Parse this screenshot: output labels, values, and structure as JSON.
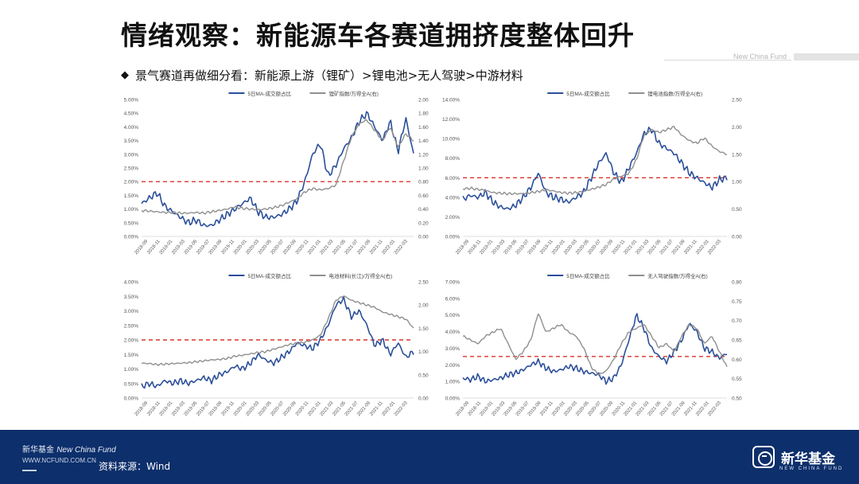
{
  "slide": {
    "title": "情绪观察：新能源车各赛道拥挤度整体回升",
    "brand_top": "New China Fund",
    "subtitle": "景气赛道再做细分看：新能源上游（锂矿）>锂电池>无人驾驶>中游材料",
    "bullet_icon": "diamond-bullet-icon"
  },
  "footer": {
    "brand_cn": "新华基金",
    "brand_en": "New China Fund",
    "url": "WWW.NCFUND.COM.CN",
    "source": "资料来源：Wind",
    "logo_text": "新华基金",
    "logo_sub": "NEW CHINA FUND",
    "logo_icon": "new-china-fund-logo-icon"
  },
  "colors": {
    "left_series": "#2b4f9a",
    "right_series": "#8f8f8f",
    "threshold": "#d9342b",
    "footer_bg": "#0d2f6b"
  },
  "chart_data": [
    {
      "type": "line",
      "x_ticks": [
        "2018-09",
        "2018-11",
        "2019-01",
        "2019-03",
        "2019-05",
        "2019-07",
        "2019-09",
        "2019-11",
        "2020-01",
        "2020-03",
        "2020-05",
        "2020-07",
        "2020-09",
        "2020-11",
        "2021-01",
        "2021-03",
        "2021-05",
        "2021-07",
        "2021-09",
        "2021-11",
        "2022-01",
        "2022-03"
      ],
      "y_left": {
        "min": 0,
        "max": 0.05,
        "ticks": [
          "0.00%",
          "0.50%",
          "1.00%",
          "1.50%",
          "2.00%",
          "2.50%",
          "3.00%",
          "3.50%",
          "4.00%",
          "4.50%",
          "5.00%"
        ]
      },
      "y_right": {
        "min": 0,
        "max": 2.0,
        "ticks": [
          "0.00",
          "0.20",
          "0.40",
          "0.60",
          "0.80",
          "1.00",
          "1.20",
          "1.40",
          "1.60",
          "1.80",
          "2.00"
        ]
      },
      "threshold": 0.02,
      "series": [
        {
          "name": "5日MA-成交额占比",
          "axis": "left",
          "values": [
            0.012,
            0.014,
            0.016,
            0.011,
            0.009,
            0.007,
            0.005,
            0.006,
            0.004,
            0.004,
            0.006,
            0.008,
            0.01,
            0.012,
            0.014,
            0.009,
            0.007,
            0.007,
            0.008,
            0.01,
            0.013,
            0.02,
            0.03,
            0.034,
            0.022,
            0.026,
            0.032,
            0.036,
            0.042,
            0.045,
            0.04,
            0.035,
            0.042,
            0.031,
            0.043,
            0.03
          ]
        },
        {
          "name": "锂矿指数/万得全A(右)",
          "axis": "right",
          "values": [
            0.38,
            0.37,
            0.36,
            0.35,
            0.35,
            0.34,
            0.34,
            0.35,
            0.34,
            0.36,
            0.38,
            0.4,
            0.43,
            0.41,
            0.4,
            0.39,
            0.4,
            0.42,
            0.45,
            0.5,
            0.55,
            0.65,
            0.7,
            0.68,
            0.7,
            0.75,
            1.1,
            1.45,
            1.65,
            1.7,
            1.55,
            1.4,
            1.6,
            1.3,
            1.5,
            1.4
          ]
        }
      ]
    },
    {
      "type": "line",
      "x_ticks": [
        "2018-09",
        "2018-11",
        "2019-01",
        "2019-03",
        "2019-05",
        "2019-07",
        "2019-09",
        "2019-11",
        "2020-01",
        "2020-03",
        "2020-05",
        "2020-07",
        "2020-09",
        "2020-11",
        "2021-01",
        "2021-03",
        "2021-05",
        "2021-07",
        "2021-09",
        "2021-11",
        "2022-01",
        "2022-03"
      ],
      "y_left": {
        "min": 0,
        "max": 0.14,
        "ticks": [
          "0.00%",
          "2.00%",
          "4.00%",
          "6.00%",
          "8.00%",
          "10.00%",
          "12.00%",
          "14.00%"
        ]
      },
      "y_right": {
        "min": 0,
        "max": 2.5,
        "ticks": [
          "0.00",
          "0.50",
          "1.00",
          "1.50",
          "2.00",
          "2.50"
        ]
      },
      "threshold": 0.06,
      "series": [
        {
          "name": "5日MA-成交额占比",
          "axis": "left",
          "values": [
            0.038,
            0.042,
            0.04,
            0.045,
            0.035,
            0.03,
            0.028,
            0.032,
            0.04,
            0.05,
            0.065,
            0.045,
            0.04,
            0.038,
            0.035,
            0.04,
            0.045,
            0.06,
            0.075,
            0.085,
            0.065,
            0.055,
            0.07,
            0.085,
            0.105,
            0.11,
            0.095,
            0.09,
            0.085,
            0.075,
            0.065,
            0.06,
            0.055,
            0.05,
            0.058,
            0.06
          ]
        },
        {
          "name": "锂电池指数/万得全A(右)",
          "axis": "right",
          "values": [
            0.87,
            0.88,
            0.86,
            0.84,
            0.8,
            0.79,
            0.78,
            0.78,
            0.78,
            0.8,
            0.82,
            0.85,
            0.83,
            0.8,
            0.79,
            0.8,
            0.82,
            0.86,
            0.9,
            0.95,
            1.05,
            1.1,
            1.15,
            1.4,
            1.85,
            1.95,
            1.9,
            1.95,
            2.0,
            1.85,
            1.75,
            1.7,
            1.8,
            1.65,
            1.55,
            1.5
          ]
        }
      ]
    },
    {
      "type": "line",
      "x_ticks": [
        "2018-09",
        "2018-11",
        "2019-01",
        "2019-03",
        "2019-05",
        "2019-07",
        "2019-09",
        "2019-11",
        "2020-01",
        "2020-03",
        "2020-05",
        "2020-07",
        "2020-09",
        "2020-11",
        "2021-01",
        "2021-03",
        "2021-05",
        "2021-07",
        "2021-09",
        "2021-11",
        "2022-01",
        "2022-03"
      ],
      "y_left": {
        "min": 0,
        "max": 0.04,
        "ticks": [
          "0.00%",
          "0.50%",
          "1.00%",
          "1.50%",
          "2.00%",
          "2.50%",
          "3.00%",
          "3.50%",
          "4.00%"
        ]
      },
      "y_right": {
        "min": 0,
        "max": 2.5,
        "ticks": [
          "0.00",
          "0.50",
          "1.00",
          "1.50",
          "2.00",
          "2.50"
        ]
      },
      "threshold": 0.02,
      "series": [
        {
          "name": "5日MA-成交额占比",
          "axis": "left",
          "values": [
            0.004,
            0.005,
            0.004,
            0.006,
            0.005,
            0.006,
            0.005,
            0.006,
            0.007,
            0.006,
            0.008,
            0.009,
            0.011,
            0.01,
            0.012,
            0.015,
            0.013,
            0.012,
            0.014,
            0.016,
            0.019,
            0.018,
            0.017,
            0.02,
            0.025,
            0.032,
            0.034,
            0.028,
            0.03,
            0.025,
            0.018,
            0.02,
            0.015,
            0.019,
            0.014,
            0.016
          ]
        },
        {
          "name": "电池材料(长江)/万得全A(右)",
          "axis": "right",
          "values": [
            0.75,
            0.74,
            0.72,
            0.73,
            0.74,
            0.75,
            0.76,
            0.78,
            0.8,
            0.82,
            0.83,
            0.85,
            0.9,
            0.92,
            0.95,
            0.98,
            1.0,
            1.05,
            1.1,
            1.15,
            1.18,
            1.2,
            1.25,
            1.35,
            1.7,
            2.1,
            2.2,
            2.1,
            2.05,
            2.0,
            1.95,
            1.85,
            1.8,
            1.75,
            1.7,
            1.5
          ]
        }
      ]
    },
    {
      "type": "line",
      "x_ticks": [
        "2018-09",
        "2018-11",
        "2019-01",
        "2019-03",
        "2019-05",
        "2019-07",
        "2019-09",
        "2019-11",
        "2020-01",
        "2020-03",
        "2020-05",
        "2020-07",
        "2020-09",
        "2020-11",
        "2021-01",
        "2021-03",
        "2021-05",
        "2021-07",
        "2021-09",
        "2021-11",
        "2022-01",
        "2022-03"
      ],
      "y_left": {
        "min": 0,
        "max": 0.07,
        "ticks": [
          "0.00%",
          "1.00%",
          "2.00%",
          "3.00%",
          "4.00%",
          "5.00%",
          "6.00%",
          "7.00%"
        ]
      },
      "y_right": {
        "min": 0.5,
        "max": 0.8,
        "ticks": [
          "0.50",
          "0.55",
          "0.60",
          "0.65",
          "0.70",
          "0.75",
          "0.80"
        ]
      },
      "threshold": 0.025,
      "series": [
        {
          "name": "5日MA-成交额占比",
          "axis": "left",
          "values": [
            0.012,
            0.011,
            0.013,
            0.01,
            0.011,
            0.012,
            0.014,
            0.015,
            0.017,
            0.02,
            0.022,
            0.018,
            0.016,
            0.017,
            0.019,
            0.018,
            0.016,
            0.015,
            0.014,
            0.01,
            0.012,
            0.02,
            0.035,
            0.05,
            0.042,
            0.03,
            0.025,
            0.022,
            0.028,
            0.035,
            0.045,
            0.04,
            0.03,
            0.028,
            0.024,
            0.027
          ]
        },
        {
          "name": "无人驾驶指数/万得全A(右)",
          "axis": "right",
          "values": [
            0.66,
            0.65,
            0.64,
            0.66,
            0.67,
            0.68,
            0.64,
            0.6,
            0.62,
            0.65,
            0.72,
            0.67,
            0.68,
            0.69,
            0.67,
            0.66,
            0.63,
            0.58,
            0.56,
            0.57,
            0.6,
            0.64,
            0.67,
            0.68,
            0.69,
            0.66,
            0.63,
            0.64,
            0.62,
            0.66,
            0.69,
            0.68,
            0.64,
            0.66,
            0.62,
            0.58
          ]
        }
      ]
    }
  ]
}
